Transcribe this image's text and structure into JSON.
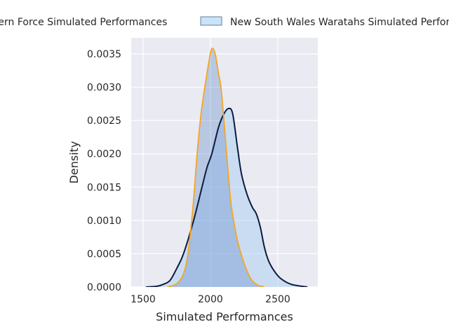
{
  "chart_data": {
    "type": "area",
    "title": "",
    "xlabel": "Simulated Performances",
    "ylabel": "Density",
    "xlim": [
      1410,
      2780
    ],
    "ylim": [
      0,
      0.00375
    ],
    "xticks": [
      1500,
      2000,
      2500
    ],
    "xtick_labels": [
      "1500",
      "2000",
      "2500"
    ],
    "yticks": [
      0,
      0.0005,
      0.001,
      0.0015,
      0.002,
      0.0025,
      0.003,
      0.0035
    ],
    "ytick_labels": [
      "0.0000",
      "0.0005",
      "0.0010",
      "0.0015",
      "0.0020",
      "0.0025",
      "0.0030",
      "0.0035"
    ],
    "grid": true,
    "legend_placement": "top-center, outside",
    "series": [
      {
        "name": "Western Force Simulated Performances",
        "line_color": "#f5a623",
        "fill_color": "#5b87c5",
        "x": [
          1680,
          1750,
          1800,
          1833,
          1870,
          1901,
          1930,
          1958,
          1990,
          2010,
          2035,
          2060,
          2078,
          2100,
          2120,
          2150,
          2172,
          2200,
          2234,
          2260,
          2300,
          2350,
          2400
        ],
        "y": [
          0,
          5e-05,
          0.0002,
          0.0005,
          0.0012,
          0.002,
          0.0026,
          0.003,
          0.0034,
          0.00358,
          0.0035,
          0.0032,
          0.003,
          0.0025,
          0.002,
          0.0013,
          0.001,
          0.0007,
          0.00045,
          0.0003,
          0.00012,
          3e-05,
          0
        ]
      },
      {
        "name": "New South Wales Waratahs Simulated Performances",
        "line_color": "#0d1b3e",
        "fill_color": "#a9cdf0",
        "x": [
          1520,
          1600,
          1650,
          1700,
          1750,
          1800,
          1875,
          1937,
          1975,
          2010,
          2060,
          2100,
          2135,
          2165,
          2200,
          2230,
          2270,
          2310,
          2340,
          2370,
          2400,
          2430,
          2470,
          2520,
          2600,
          2720
        ],
        "y": [
          0,
          1e-05,
          4e-05,
          0.0001,
          0.00028,
          0.0005,
          0.001,
          0.0015,
          0.0018,
          0.002,
          0.0024,
          0.0026,
          0.00268,
          0.0026,
          0.0021,
          0.0017,
          0.0014,
          0.0012,
          0.0011,
          0.0009,
          0.0006,
          0.0004,
          0.00025,
          0.00013,
          4e-05,
          0
        ]
      }
    ]
  }
}
